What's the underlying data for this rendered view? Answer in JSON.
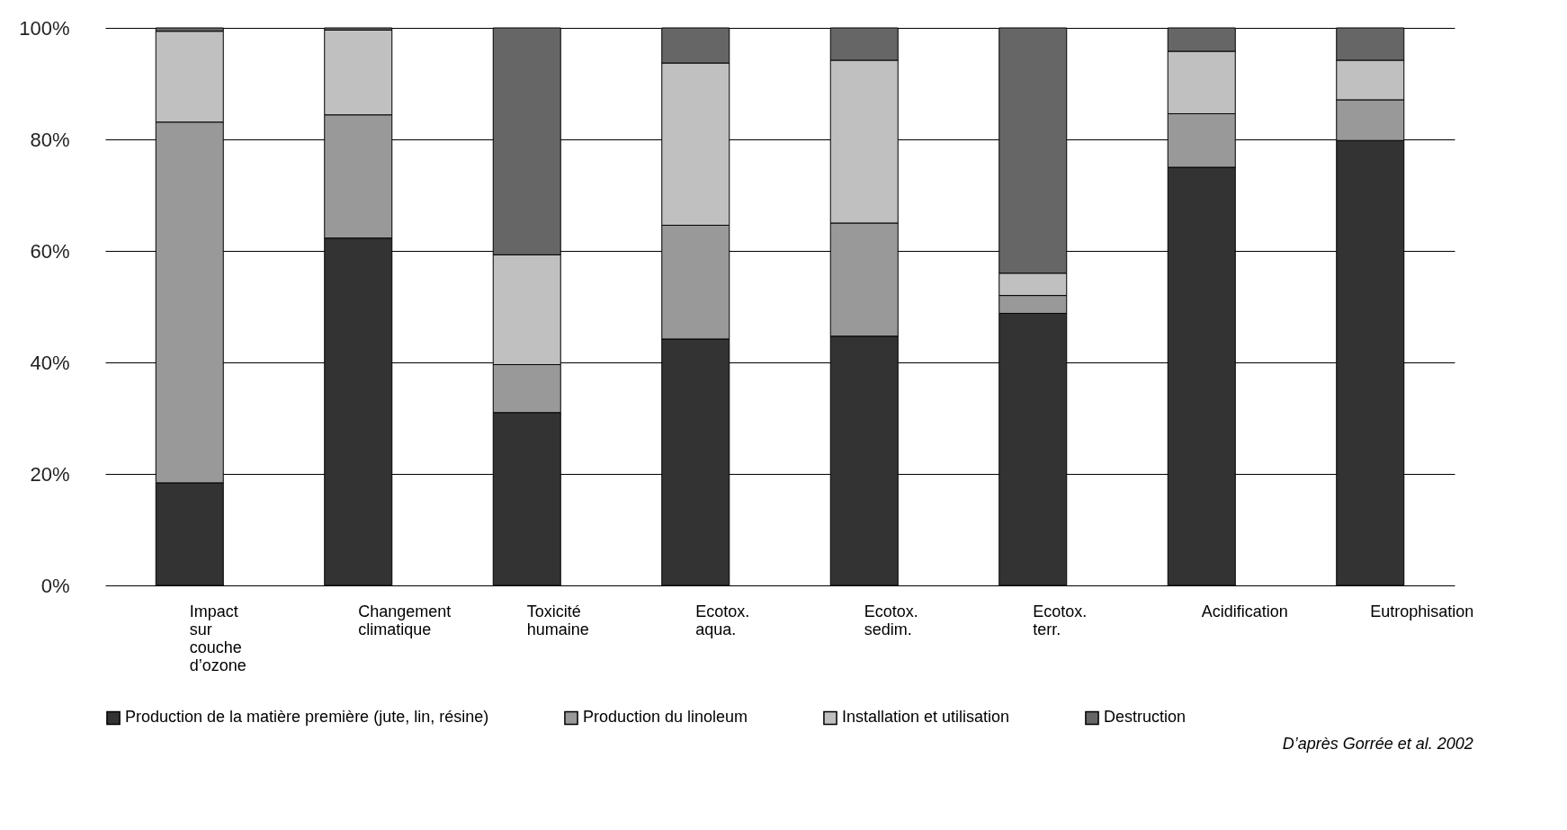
{
  "chart_data": {
    "type": "bar",
    "stacked": true,
    "categories": [
      "Impact sur couche d’ozone",
      "Changement climatique",
      "Toxicité humaine",
      "Ecotox. aqua.",
      "Ecotox. sedim.",
      "Ecotox. terr.",
      "Acidification",
      "Eutrophisation"
    ],
    "series": [
      {
        "name": "Production de la matière première (jute, lin, résine)",
        "color": "#333333",
        "values": [
          18.4,
          62.3,
          31.0,
          44.2,
          44.7,
          48.8,
          75.0,
          79.8
        ]
      },
      {
        "name": "Production du linoleum",
        "color": "#999999",
        "values": [
          64.7,
          22.1,
          8.6,
          20.4,
          20.3,
          3.2,
          9.6,
          7.3
        ]
      },
      {
        "name": "Installation et utilisation",
        "color": "#c0c0c0",
        "values": [
          16.3,
          15.2,
          19.7,
          29.1,
          29.2,
          4.0,
          11.2,
          7.1
        ]
      },
      {
        "name": "Destruction",
        "color": "#666666",
        "values": [
          0.6,
          0.4,
          40.7,
          6.3,
          5.8,
          44.0,
          4.2,
          5.8
        ]
      }
    ],
    "ylim": [
      0,
      100
    ],
    "yticks": [
      {
        "value": 0,
        "label": "0%"
      },
      {
        "value": 20,
        "label": "20%"
      },
      {
        "value": 40,
        "label": "40%"
      },
      {
        "value": 60,
        "label": "60%"
      },
      {
        "value": 80,
        "label": "80%"
      },
      {
        "value": 100,
        "label": "100%"
      }
    ],
    "grid": "y",
    "legend": "bottom",
    "annotations": [
      "D’après Gorrée et al. 2002"
    ]
  }
}
